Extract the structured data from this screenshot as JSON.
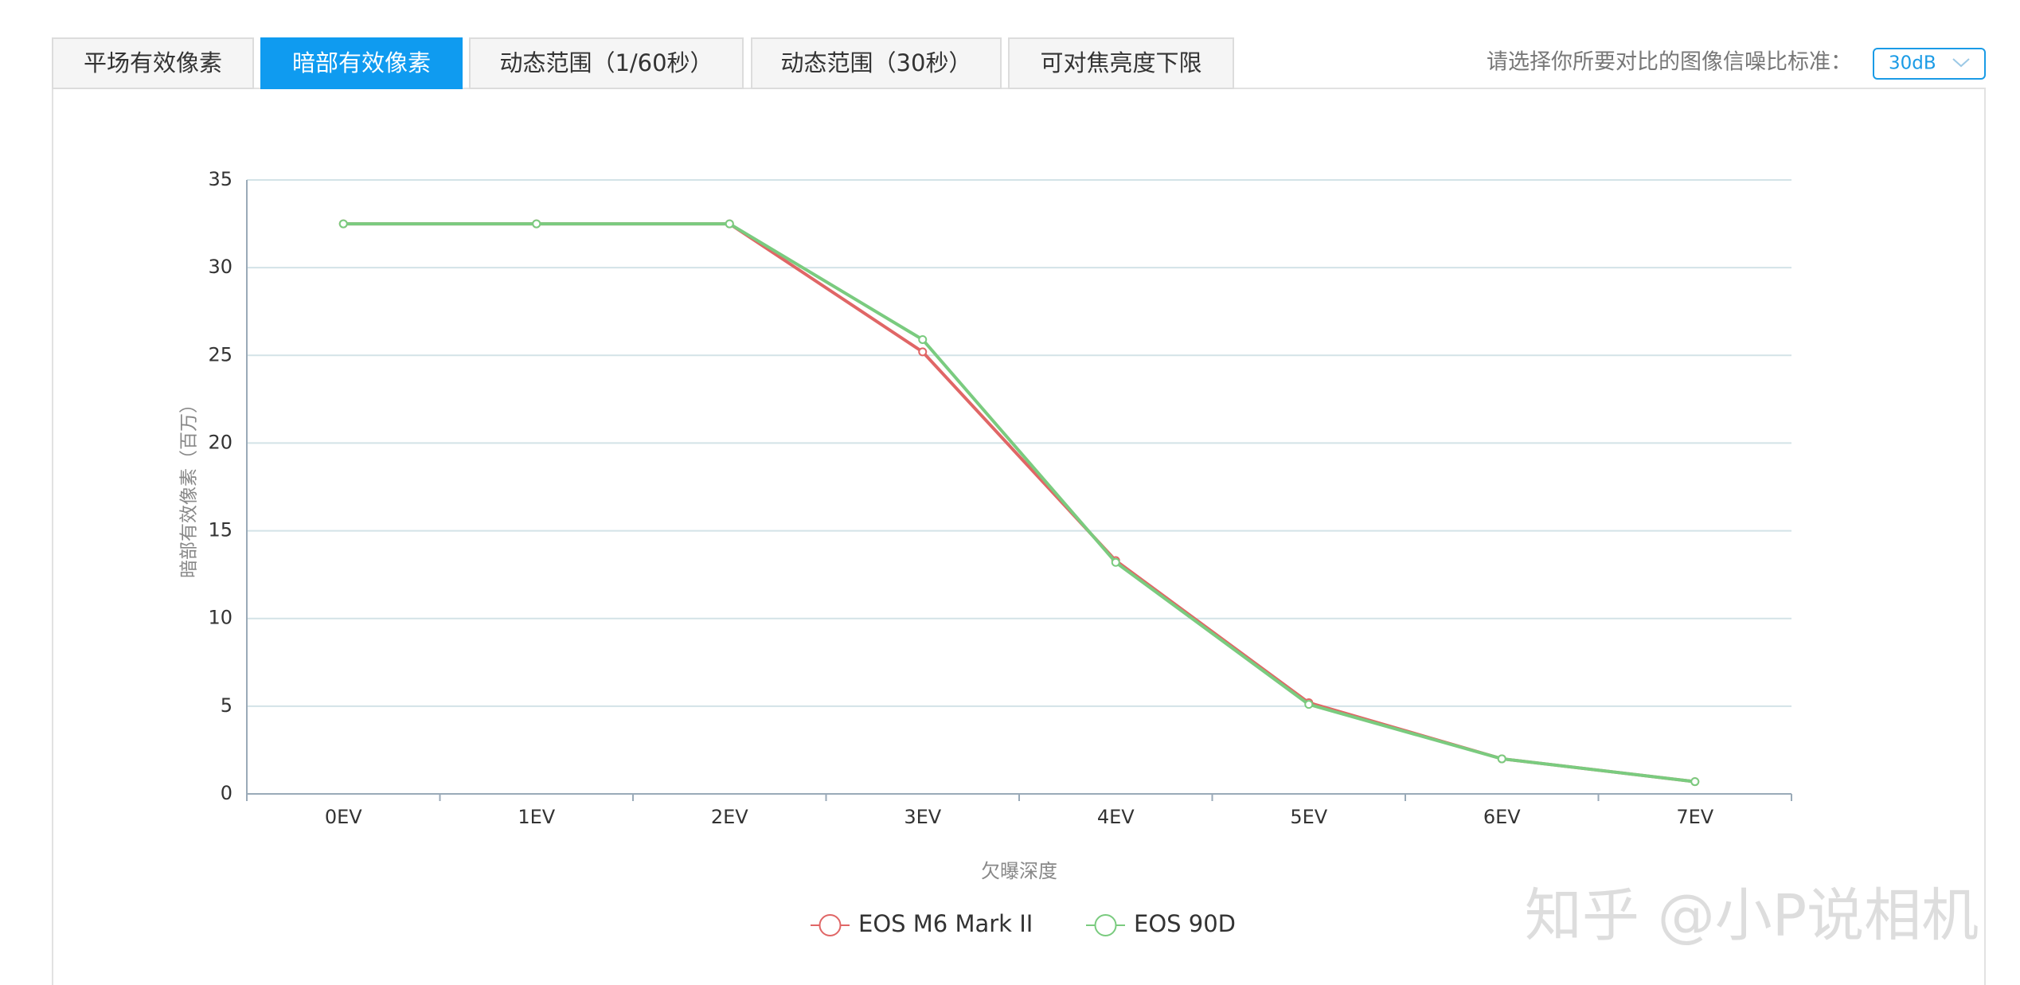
{
  "tabs": [
    "平场有效像素",
    "暗部有效像素",
    "动态范围（1/60秒）",
    "动态范围（30秒）",
    "可对焦亮度下限"
  ],
  "active_tab": 1,
  "selector": {
    "label": "请选择你所要对比的图像信噪比标准：",
    "value": "30dB"
  },
  "watermark": "知乎 @小P说相机",
  "chart_data": {
    "type": "line",
    "y_label": "暗部有效像素（百万）",
    "x_label": "欠曝深度",
    "categories": [
      "0EV",
      "1EV",
      "2EV",
      "3EV",
      "4EV",
      "5EV",
      "6EV",
      "7EV"
    ],
    "series": [
      {
        "name": "EOS M6 Mark II",
        "color": "#e06666",
        "values": [
          32.5,
          32.5,
          32.5,
          25.2,
          13.3,
          5.2,
          2.0,
          0.7
        ]
      },
      {
        "name": "EOS 90D",
        "color": "#7acb7f",
        "values": [
          32.5,
          32.5,
          32.5,
          25.9,
          13.2,
          5.1,
          2.0,
          0.7
        ]
      }
    ],
    "ylim": [
      0,
      35
    ],
    "yticks": [
      0,
      5,
      10,
      15,
      20,
      25,
      30,
      35
    ],
    "grid": true
  }
}
